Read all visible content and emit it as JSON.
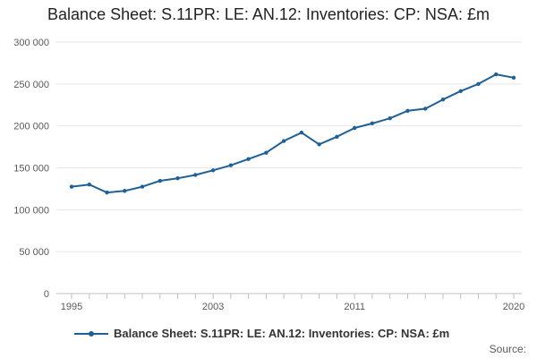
{
  "chart_data": {
    "type": "line",
    "title": "Balance Sheet: S.11PR: LE: AN.12: Inventories: CP: NSA: £m",
    "xlabel": "",
    "ylabel": "",
    "x": [
      1995,
      1996,
      1997,
      1998,
      1999,
      2000,
      2001,
      2002,
      2003,
      2004,
      2005,
      2006,
      2007,
      2008,
      2009,
      2010,
      2011,
      2012,
      2013,
      2014,
      2015,
      2016,
      2017,
      2018,
      2019,
      2020
    ],
    "series": [
      {
        "name": "Balance Sheet: S.11PR: LE: AN.12: Inventories: CP: NSA: £m",
        "color": "#206095",
        "values": [
          127500,
          130000,
          120500,
          122500,
          127500,
          134500,
          137500,
          141500,
          147000,
          153000,
          160500,
          168000,
          182000,
          192000,
          178000,
          187000,
          197500,
          203000,
          209000,
          218000,
          220500,
          231500,
          241500,
          250000,
          261500,
          257500
        ]
      }
    ],
    "xticks": [
      "1995",
      "2003",
      "2011",
      "2020"
    ],
    "xtick_values": [
      1995,
      2003,
      2011,
      2020
    ],
    "yticks": [
      "0",
      "50 000",
      "100 000",
      "150 000",
      "200 000",
      "250 000",
      "300 000"
    ],
    "ytick_values": [
      0,
      50000,
      100000,
      150000,
      200000,
      250000,
      300000
    ],
    "ylim": [
      0,
      300000
    ],
    "xlim": [
      1995,
      2020
    ],
    "grid": true,
    "legend_position": "bottom"
  },
  "footer": {
    "source_label": "Source:"
  }
}
